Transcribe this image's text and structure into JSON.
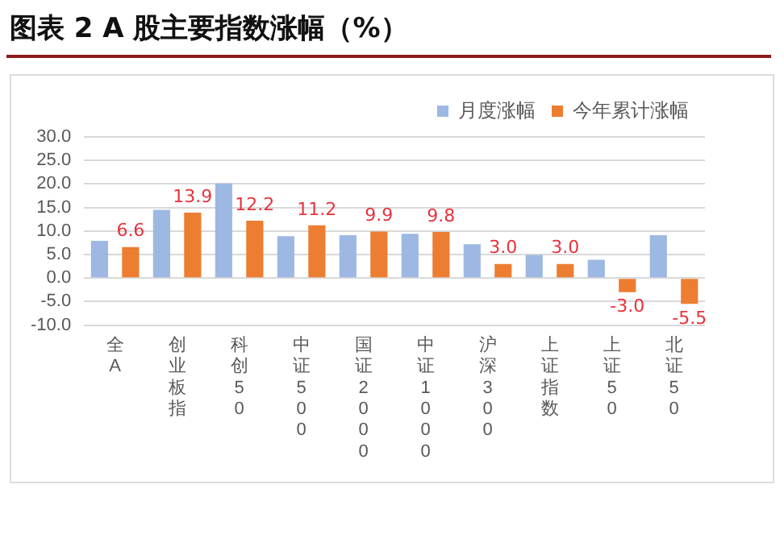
{
  "chart_data": {
    "type": "bar",
    "title": "图表 2  A 股主要指数涨幅（%）",
    "categories": [
      "全A",
      "创业板指",
      "科创50",
      "中证500",
      "国证2000",
      "中证1000",
      "沪深300",
      "上证指数",
      "上证50",
      "北证50"
    ],
    "series": [
      {
        "name": "月度涨幅",
        "color": "#9db8e2",
        "values": [
          7.9,
          14.5,
          20.1,
          8.9,
          9.1,
          9.4,
          7.2,
          4.9,
          3.9,
          9.1
        ]
      },
      {
        "name": "今年累计涨幅",
        "color": "#ed7d31",
        "values": [
          6.6,
          13.9,
          12.2,
          11.2,
          9.9,
          9.8,
          3.0,
          3.0,
          -3.0,
          -5.5
        ],
        "value_labels": [
          "6.6",
          "13.9",
          "12.2",
          "11.2",
          "9.9",
          "9.8",
          "3.0",
          "3.0",
          "-3.0",
          "-5.5"
        ]
      }
    ],
    "ylim": [
      -10,
      30
    ],
    "yticks": [
      {
        "value": -10,
        "label": "-10.0"
      },
      {
        "value": -5,
        "label": "-5.0"
      },
      {
        "value": 0,
        "label": "0.0"
      },
      {
        "value": 5,
        "label": "5.0"
      },
      {
        "value": 10,
        "label": "10.0"
      },
      {
        "value": 15,
        "label": "15.0"
      },
      {
        "value": 20,
        "label": "20.0"
      },
      {
        "value": 25,
        "label": "25.0"
      },
      {
        "value": 30,
        "label": "30.0"
      }
    ],
    "grid": "y",
    "legend": "top right"
  }
}
